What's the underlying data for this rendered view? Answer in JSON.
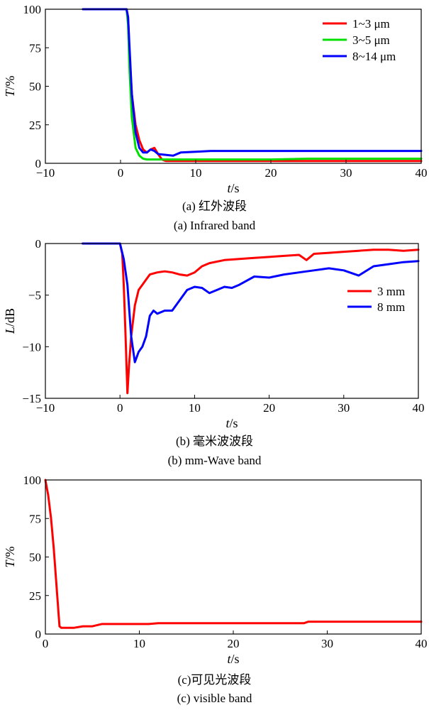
{
  "chart_data": [
    {
      "type": "line",
      "xlabel": "t/s",
      "ylabel": "T/%",
      "xlim": [
        -10,
        40
      ],
      "ylim": [
        0,
        100
      ],
      "xticks": [
        -10,
        0,
        10,
        20,
        30,
        40
      ],
      "yticks": [
        0,
        25,
        50,
        75,
        100
      ],
      "legend_position": "top-right",
      "caption_cn": "(a) 红外波段",
      "caption_en": "(a) Infrared band",
      "series": [
        {
          "name": "1~3 μm",
          "color": "#ff0000",
          "x": [
            -5,
            0.8,
            1.0,
            1.2,
            1.5,
            2.0,
            2.5,
            3.0,
            3.5,
            4.0,
            4.5,
            5.0,
            5.5,
            6,
            8,
            10,
            15,
            20,
            25,
            30,
            35,
            40
          ],
          "y": [
            100,
            100,
            95,
            70,
            45,
            25,
            15,
            9,
            7,
            9,
            10,
            6,
            2.5,
            1.5,
            1.5,
            1.5,
            1.5,
            1.5,
            1.5,
            1.5,
            1.5,
            1.5
          ]
        },
        {
          "name": "3~5 μm",
          "color": "#00e000",
          "x": [
            -5,
            0.8,
            1.0,
            1.2,
            1.5,
            2.0,
            2.5,
            3.0,
            3.5,
            4.0,
            5.0,
            6,
            8,
            10,
            15,
            20,
            25,
            30,
            35,
            40
          ],
          "y": [
            100,
            100,
            90,
            60,
            30,
            10,
            5,
            3,
            2.5,
            2.5,
            2.5,
            2.5,
            2.5,
            2.5,
            2.5,
            2.5,
            3,
            3,
            3,
            3
          ]
        },
        {
          "name": "8~14 μm",
          "color": "#0000ff",
          "x": [
            -5,
            0.8,
            1.0,
            1.2,
            1.5,
            2.0,
            2.5,
            3.0,
            3.5,
            4.0,
            4.5,
            5.0,
            6,
            7,
            8,
            10,
            12,
            15,
            20,
            25,
            30,
            35,
            40
          ],
          "y": [
            100,
            100,
            95,
            75,
            45,
            20,
            10,
            7,
            7,
            9,
            8,
            6,
            5.5,
            5,
            7,
            7.5,
            8,
            8,
            8,
            8,
            8,
            8,
            8
          ]
        }
      ]
    },
    {
      "type": "line",
      "xlabel": "t/s",
      "ylabel": "L/dB",
      "xlim": [
        -10,
        40
      ],
      "ylim": [
        -15,
        0
      ],
      "xticks": [
        -10,
        0,
        10,
        20,
        30,
        40
      ],
      "yticks": [
        0,
        -5,
        -10,
        -15
      ],
      "legend_position": "right",
      "caption_cn": "(b) 毫米波波段",
      "caption_en": "(b) mm-Wave band",
      "series": [
        {
          "name": "3 mm",
          "color": "#ff0000",
          "x": [
            -5,
            0,
            0.3,
            0.5,
            0.7,
            1.0,
            1.2,
            1.5,
            2.0,
            2.5,
            3.0,
            3.5,
            4.0,
            5,
            6,
            7,
            8,
            9,
            10,
            11,
            12,
            14,
            16,
            18,
            20,
            22,
            24,
            25,
            26,
            28,
            30,
            32,
            34,
            36,
            38,
            40
          ],
          "y": [
            0,
            0,
            -1,
            -4,
            -8,
            -14.5,
            -12,
            -9,
            -6,
            -4.5,
            -4,
            -3.5,
            -3,
            -2.8,
            -2.7,
            -2.8,
            -3,
            -3.1,
            -2.8,
            -2.2,
            -1.9,
            -1.6,
            -1.5,
            -1.4,
            -1.3,
            -1.2,
            -1.1,
            -1.6,
            -1.0,
            -0.9,
            -0.8,
            -0.7,
            -0.6,
            -0.6,
            -0.7,
            -0.6
          ]
        },
        {
          "name": "8 mm",
          "color": "#0000ff",
          "x": [
            -5,
            0,
            0.5,
            1.0,
            1.5,
            2.0,
            2.5,
            3.0,
            3.5,
            4.0,
            4.5,
            5,
            6,
            7,
            8,
            9,
            10,
            11,
            12,
            13,
            14,
            15,
            16,
            18,
            20,
            22,
            24,
            26,
            28,
            30,
            32,
            34,
            36,
            38,
            40
          ],
          "y": [
            0,
            0,
            -1.5,
            -4,
            -9,
            -11.5,
            -10.5,
            -10,
            -9,
            -7,
            -6.5,
            -6.8,
            -6.5,
            -6.5,
            -5.5,
            -4.5,
            -4.2,
            -4.3,
            -4.8,
            -4.5,
            -4.2,
            -4.3,
            -4,
            -3.2,
            -3.3,
            -3.0,
            -2.8,
            -2.6,
            -2.4,
            -2.6,
            -3.1,
            -2.2,
            -2.0,
            -1.8,
            -1.7
          ]
        }
      ]
    },
    {
      "type": "line",
      "xlabel": "t/s",
      "ylabel": "T/%",
      "xlim": [
        0,
        40
      ],
      "ylim": [
        0,
        100
      ],
      "xticks": [
        0,
        10,
        20,
        30,
        40
      ],
      "yticks": [
        0,
        25,
        50,
        75,
        100
      ],
      "caption_cn": "(c)可见光波段",
      "caption_en": "(c) visible band",
      "series": [
        {
          "color": "#ff0000",
          "x": [
            0,
            0.3,
            0.6,
            0.9,
            1.2,
            1.5,
            1.7,
            2,
            3,
            4,
            5,
            6,
            8,
            10,
            11,
            12,
            15,
            20,
            25,
            27.5,
            28,
            30,
            35,
            40
          ],
          "y": [
            100,
            90,
            75,
            55,
            30,
            5,
            4,
            4,
            4,
            5,
            5,
            6.5,
            6.5,
            6.5,
            6.5,
            7,
            7,
            7,
            7,
            7,
            8,
            8,
            8,
            8
          ]
        }
      ]
    }
  ]
}
